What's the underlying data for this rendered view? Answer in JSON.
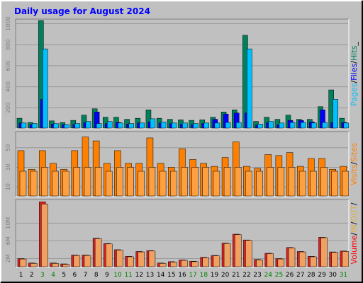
{
  "title": "Daily usage for August 2024",
  "colors": {
    "background": "#c0c0c0",
    "title": "#0000ff",
    "hits": "#00805c",
    "files": "#0000ff",
    "pages": "#00c0ff",
    "visits": "#ff8000",
    "sites": "#ff8000",
    "kbytes": "#ff0000",
    "in": "#e0b040",
    "out": "#e0b040"
  },
  "legend": {
    "top": [
      {
        "text": "Pages",
        "color": "#00c0ff"
      },
      {
        "text": "/",
        "color": "#000000"
      },
      {
        "text": "Files",
        "color": "#0000ff"
      },
      {
        "text": "/",
        "color": "#000000"
      },
      {
        "text": "Hits",
        "color": "#00805c"
      },
      {
        "text": "_",
        "color": "#000000"
      }
    ],
    "middle": [
      {
        "text": "Visits",
        "color": "#ff8000"
      },
      {
        "text": "/",
        "color": "#000000"
      },
      {
        "text": "Sites",
        "color": "#ff8000"
      }
    ],
    "bottom": [
      {
        "text": "Volume",
        "color": "#ff0000"
      },
      {
        "text": "/",
        "color": "#000000"
      },
      {
        "text": "IN",
        "color": "#e0b040"
      },
      {
        "text": "/",
        "color": "#000000"
      },
      {
        "text": "OUT",
        "color": "#e0b040"
      },
      {
        "text": "/",
        "color": "#000000"
      }
    ]
  },
  "chart_data": [
    {
      "type": "bar",
      "panel": "hits-files-pages",
      "categories": [
        "1",
        "2",
        "3",
        "4",
        "5",
        "6",
        "7",
        "8",
        "9",
        "10",
        "11",
        "12",
        "13",
        "14",
        "15",
        "16",
        "17",
        "18",
        "19",
        "20",
        "21",
        "22",
        "23",
        "24",
        "25",
        "26",
        "27",
        "28",
        "29",
        "30",
        "31"
      ],
      "weekend_days": [
        "3",
        "4",
        "10",
        "11",
        "17",
        "18",
        "24",
        "25",
        "31"
      ],
      "ylim": [
        0,
        1030
      ],
      "yticks": [
        "200",
        "400",
        "600",
        "800",
        "1000"
      ],
      "ytick_values": [
        200,
        400,
        600,
        800,
        1000
      ],
      "series": [
        {
          "name": "Hits",
          "values": [
            100,
            60,
            1030,
            75,
            60,
            80,
            130,
            190,
            110,
            110,
            90,
            100,
            180,
            100,
            90,
            85,
            80,
            85,
            110,
            160,
            180,
            890,
            70,
            110,
            90,
            130,
            90,
            90,
            210,
            370,
            100
          ]
        },
        {
          "name": "Files",
          "values": [
            55,
            40,
            280,
            45,
            40,
            40,
            60,
            160,
            50,
            60,
            45,
            55,
            65,
            55,
            50,
            45,
            40,
            50,
            90,
            140,
            150,
            150,
            35,
            60,
            40,
            80,
            80,
            65,
            180,
            60,
            60
          ]
        },
        {
          "name": "Pages",
          "values": [
            55,
            50,
            760,
            50,
            40,
            50,
            70,
            50,
            70,
            55,
            50,
            55,
            95,
            65,
            55,
            55,
            50,
            55,
            55,
            60,
            60,
            760,
            45,
            70,
            55,
            60,
            60,
            55,
            60,
            280,
            55
          ]
        }
      ]
    },
    {
      "type": "bar",
      "panel": "visits-sites",
      "categories": [
        "1",
        "2",
        "3",
        "4",
        "5",
        "6",
        "7",
        "8",
        "9",
        "10",
        "11",
        "12",
        "13",
        "14",
        "15",
        "16",
        "17",
        "18",
        "19",
        "20",
        "21",
        "22",
        "23",
        "24",
        "25",
        "26",
        "27",
        "28",
        "29",
        "30",
        "31"
      ],
      "weekend_days": [
        "3",
        "4",
        "10",
        "11",
        "17",
        "18",
        "24",
        "25",
        "31"
      ],
      "ylim": [
        0,
        65
      ],
      "yticks": [
        "10",
        "30",
        "50"
      ],
      "ytick_values": [
        10,
        30,
        50
      ],
      "series": [
        {
          "name": "Visits",
          "values": [
            47,
            28,
            47,
            34,
            28,
            47,
            61,
            57,
            34,
            47,
            34,
            34,
            60,
            34,
            30,
            49,
            38,
            34,
            31,
            40,
            56,
            31,
            29,
            43,
            42,
            45,
            31,
            39,
            39,
            28,
            31
          ]
        },
        {
          "name": "Sites",
          "values": [
            26,
            26,
            30,
            26,
            26,
            30,
            30,
            30,
            26,
            30,
            30,
            26,
            30,
            26,
            26,
            30,
            30,
            30,
            26,
            30,
            30,
            26,
            26,
            30,
            30,
            30,
            26,
            26,
            30,
            26,
            26
          ]
        }
      ]
    },
    {
      "type": "bar",
      "panel": "volume",
      "categories": [
        "1",
        "2",
        "3",
        "4",
        "5",
        "6",
        "7",
        "8",
        "9",
        "10",
        "11",
        "12",
        "13",
        "14",
        "15",
        "16",
        "17",
        "18",
        "19",
        "20",
        "21",
        "22",
        "23",
        "24",
        "25",
        "26",
        "27",
        "28",
        "29",
        "30",
        "31"
      ],
      "weekend_days": [
        "3",
        "4",
        "10",
        "11",
        "17",
        "18",
        "24",
        "25",
        "31"
      ],
      "ylim": [
        0,
        15
      ],
      "yticks": [
        "2M",
        "6M",
        "10M"
      ],
      "ytick_values": [
        2,
        6,
        10
      ],
      "series": [
        {
          "name": "Volume",
          "values": [
            2.0,
            1.0,
            14.8,
            1.0,
            0.8,
            2.8,
            2.8,
            6.6,
            5.4,
            4.0,
            2.5,
            3.6,
            3.8,
            1.0,
            1.3,
            1.7,
            1.4,
            2.3,
            2.7,
            5.5,
            7.5,
            6.2,
            1.8,
            3.2,
            2.0,
            4.5,
            3.6,
            2.5,
            6.8,
            3.5,
            3.7
          ]
        },
        {
          "name": "OUT",
          "values": [
            1.9,
            0.9,
            14.3,
            0.9,
            0.7,
            2.7,
            2.7,
            6.5,
            5.3,
            3.9,
            2.4,
            3.5,
            3.7,
            0.9,
            1.2,
            1.6,
            1.3,
            2.2,
            2.6,
            5.4,
            7.4,
            6.1,
            1.7,
            3.1,
            1.9,
            4.4,
            3.5,
            2.4,
            6.7,
            3.4,
            3.6
          ]
        }
      ]
    }
  ]
}
